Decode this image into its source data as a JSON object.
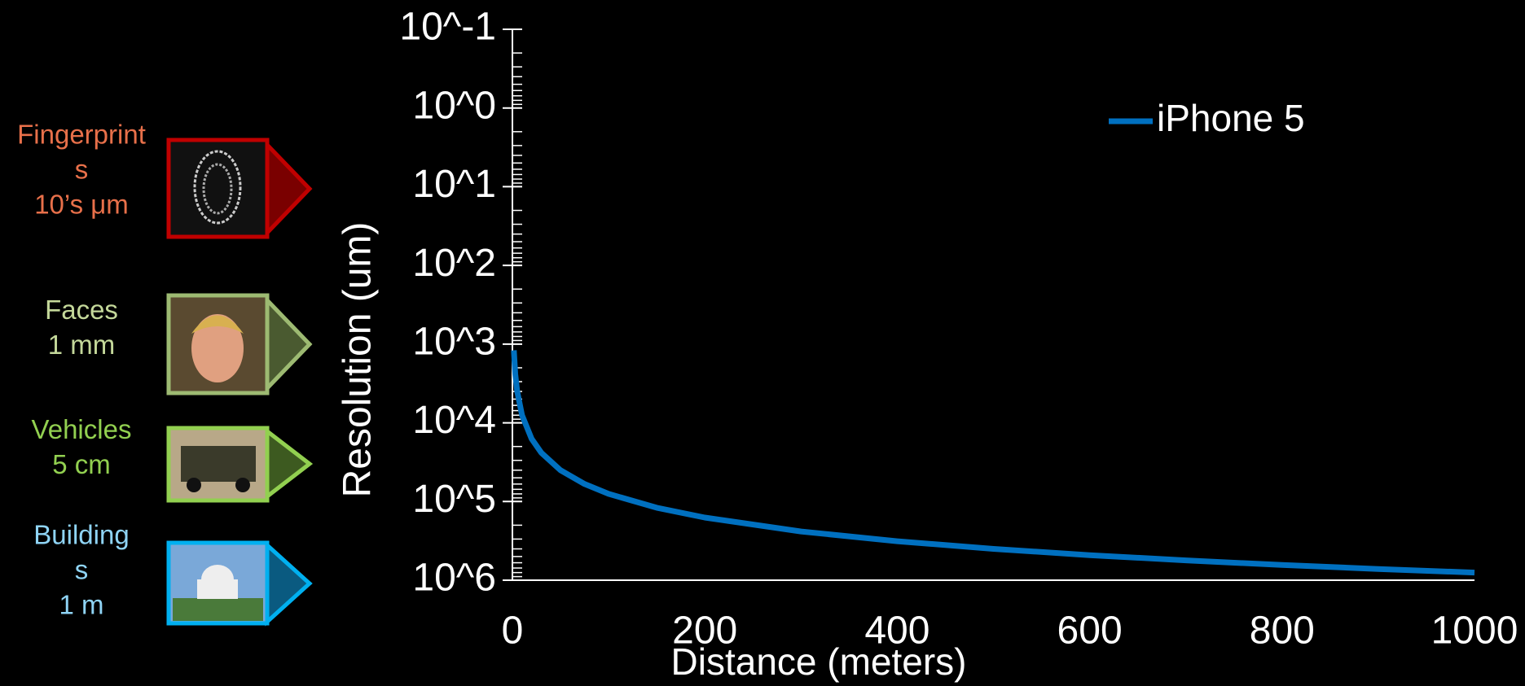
{
  "chart_data": {
    "type": "line",
    "x_label": "Distance (meters)",
    "y_label": "Resolution (um)",
    "x": [
      1.5,
      3,
      5,
      10,
      20,
      30,
      50,
      75,
      100,
      150,
      200,
      300,
      400,
      500,
      600,
      700,
      800,
      900,
      1000
    ],
    "series": [
      {
        "name": "iPhone 5",
        "color": "#0070c0",
        "values": [
          1200,
          2400,
          4000,
          8000,
          16000,
          24000,
          40000,
          60000,
          80000,
          120000,
          160000,
          240000,
          320000,
          400000,
          480000,
          560000,
          640000,
          720000,
          800000
        ]
      }
    ],
    "xlim": [
      0,
      1000
    ],
    "xticks": [
      0,
      200,
      400,
      600,
      800,
      1000
    ],
    "ylim": [
      0.1,
      1000000
    ],
    "y_inverted": true,
    "y_log": true,
    "yticks": [
      {
        "value": 0.1,
        "label": "10^-1"
      },
      {
        "value": 1,
        "label": "10^0"
      },
      {
        "value": 10,
        "label": "10^1"
      },
      {
        "value": 100,
        "label": "10^2"
      },
      {
        "value": 1000,
        "label": "10^3"
      },
      {
        "value": 10000,
        "label": "10^4"
      },
      {
        "value": 100000,
        "label": "10^5"
      },
      {
        "value": 1000000,
        "label": "10^6"
      }
    ],
    "legend": "upper right"
  },
  "scale_examples": [
    {
      "lines": [
        "Fingerprint",
        "s",
        "10’s μm"
      ]
    },
    {
      "lines": [
        "Faces",
        "1 mm"
      ]
    },
    {
      "lines": [
        "Vehicles",
        "5 cm"
      ]
    },
    {
      "lines": [
        "Building",
        "s",
        "1 m"
      ]
    }
  ]
}
